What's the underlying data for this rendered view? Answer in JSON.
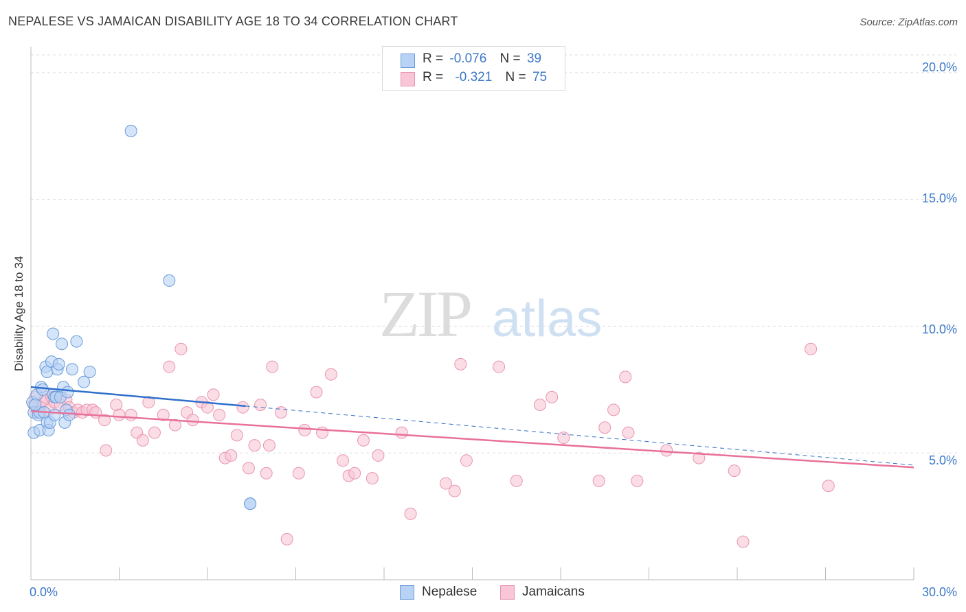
{
  "header": {
    "title": "NEPALESE VS JAMAICAN DISABILITY AGE 18 TO 34 CORRELATION CHART",
    "source": "Source: ZipAtlas.com"
  },
  "watermark": {
    "zip": "ZIP",
    "atlas": "atlas"
  },
  "legend": {
    "rows": [
      {
        "r_label": "R =",
        "r_value": "-0.076",
        "n_label": "N =",
        "n_value": "39"
      },
      {
        "r_label": "R =",
        "r_value": "-0.321",
        "n_label": "N =",
        "n_value": "75"
      }
    ]
  },
  "bottom_legend": {
    "items": [
      "Nepalese",
      "Jamaicans"
    ]
  },
  "colors": {
    "nepalese_fill": "#b7d2f5",
    "nepalese_stroke": "#6a9bd8",
    "nepalese_line": "#2f6fcb",
    "jamaican_fill": "#f8c6d6",
    "jamaican_stroke": "#e894b0",
    "jamaican_line": "#e8709a",
    "tick_text": "#3c78c8",
    "grid": "#dddddd"
  },
  "chart_data": {
    "type": "scatter",
    "title": "NEPALESE VS JAMAICAN DISABILITY AGE 18 TO 34 CORRELATION CHART",
    "xlabel": "",
    "ylabel": "Disability Age 18 to 34",
    "xlim": [
      0,
      30
    ],
    "ylim": [
      0,
      20.7
    ],
    "x_tick_labels": [
      "0.0%",
      "30.0%"
    ],
    "y_ticks": [
      5,
      10,
      15,
      20
    ],
    "y_tick_labels": [
      "5.0%",
      "10.0%",
      "15.0%",
      "20.0%"
    ],
    "grid": true,
    "legend_position": "top-center",
    "series": [
      {
        "name": "Nepalese",
        "r": -0.076,
        "n": 39,
        "trend": {
          "x": [
            0,
            7.3
          ],
          "y": [
            7.6,
            6.85
          ]
        },
        "trend_extension": {
          "x": [
            7.3,
            30
          ],
          "y": [
            6.85,
            4.52
          ]
        },
        "points": [
          [
            0.05,
            7.0
          ],
          [
            0.1,
            6.6
          ],
          [
            0.1,
            5.8
          ],
          [
            0.2,
            7.3
          ],
          [
            0.25,
            6.5
          ],
          [
            0.3,
            5.9
          ],
          [
            0.3,
            6.6
          ],
          [
            0.35,
            7.6
          ],
          [
            0.4,
            7.5
          ],
          [
            0.45,
            6.6
          ],
          [
            0.5,
            8.4
          ],
          [
            0.55,
            8.2
          ],
          [
            0.55,
            6.2
          ],
          [
            0.6,
            5.9
          ],
          [
            0.65,
            6.2
          ],
          [
            0.7,
            8.6
          ],
          [
            0.75,
            7.3
          ],
          [
            0.75,
            9.7
          ],
          [
            0.8,
            7.2
          ],
          [
            0.8,
            6.5
          ],
          [
            0.85,
            7.2
          ],
          [
            0.9,
            8.3
          ],
          [
            0.95,
            8.5
          ],
          [
            1.0,
            7.2
          ],
          [
            1.05,
            9.3
          ],
          [
            1.1,
            7.6
          ],
          [
            1.15,
            6.2
          ],
          [
            1.2,
            6.7
          ],
          [
            1.25,
            7.4
          ],
          [
            1.3,
            6.5
          ],
          [
            1.4,
            8.3
          ],
          [
            1.55,
            9.4
          ],
          [
            1.8,
            7.8
          ],
          [
            2.0,
            8.2
          ],
          [
            3.4,
            17.7
          ],
          [
            4.7,
            11.8
          ],
          [
            7.45,
            3.0
          ],
          [
            7.45,
            3.0
          ],
          [
            0.15,
            6.9
          ]
        ]
      },
      {
        "name": "Jamaicans",
        "r": -0.321,
        "n": 75,
        "trend": {
          "x": [
            0,
            30
          ],
          "y": [
            6.65,
            4.43
          ]
        },
        "points": [
          [
            0.1,
            6.9
          ],
          [
            0.15,
            7.2
          ],
          [
            0.25,
            6.6
          ],
          [
            0.3,
            6.8
          ],
          [
            0.4,
            7.0
          ],
          [
            0.5,
            7.2
          ],
          [
            0.6,
            6.7
          ],
          [
            0.7,
            7.2
          ],
          [
            0.8,
            7.0
          ],
          [
            1.0,
            6.9
          ],
          [
            1.2,
            7.1
          ],
          [
            1.3,
            6.8
          ],
          [
            1.45,
            6.6
          ],
          [
            1.6,
            6.7
          ],
          [
            1.75,
            6.6
          ],
          [
            1.9,
            6.7
          ],
          [
            2.1,
            6.7
          ],
          [
            2.2,
            6.6
          ],
          [
            2.5,
            6.3
          ],
          [
            2.55,
            5.1
          ],
          [
            2.9,
            6.9
          ],
          [
            3.0,
            6.5
          ],
          [
            3.4,
            6.5
          ],
          [
            3.6,
            5.8
          ],
          [
            3.8,
            5.5
          ],
          [
            4.0,
            7.0
          ],
          [
            4.2,
            5.8
          ],
          [
            4.5,
            6.5
          ],
          [
            4.7,
            8.4
          ],
          [
            4.9,
            6.1
          ],
          [
            5.1,
            9.1
          ],
          [
            5.3,
            6.6
          ],
          [
            5.5,
            6.3
          ],
          [
            5.8,
            7.0
          ],
          [
            6.0,
            6.8
          ],
          [
            6.2,
            7.3
          ],
          [
            6.4,
            6.5
          ],
          [
            6.6,
            4.8
          ],
          [
            6.8,
            4.9
          ],
          [
            7.0,
            5.7
          ],
          [
            7.2,
            6.8
          ],
          [
            7.4,
            4.4
          ],
          [
            7.6,
            5.3
          ],
          [
            7.8,
            6.9
          ],
          [
            8.0,
            4.2
          ],
          [
            8.1,
            5.3
          ],
          [
            8.2,
            8.4
          ],
          [
            8.5,
            6.6
          ],
          [
            8.7,
            1.6
          ],
          [
            9.1,
            4.2
          ],
          [
            9.3,
            5.9
          ],
          [
            9.7,
            7.4
          ],
          [
            9.9,
            5.8
          ],
          [
            10.2,
            8.1
          ],
          [
            10.6,
            4.7
          ],
          [
            10.8,
            4.1
          ],
          [
            11.0,
            4.2
          ],
          [
            11.3,
            5.5
          ],
          [
            11.6,
            4.0
          ],
          [
            11.8,
            4.9
          ],
          [
            12.6,
            5.8
          ],
          [
            12.9,
            2.6
          ],
          [
            14.1,
            3.8
          ],
          [
            14.4,
            3.5
          ],
          [
            14.6,
            8.5
          ],
          [
            14.8,
            4.7
          ],
          [
            15.9,
            8.4
          ],
          [
            16.5,
            3.9
          ],
          [
            17.3,
            6.9
          ],
          [
            17.7,
            7.2
          ],
          [
            18.1,
            5.6
          ],
          [
            19.3,
            3.9
          ],
          [
            19.5,
            6.0
          ],
          [
            19.8,
            6.7
          ],
          [
            20.2,
            8.0
          ]
        ],
        "extra_points": [
          [
            20.3,
            5.8
          ],
          [
            20.6,
            3.9
          ],
          [
            21.6,
            5.1
          ],
          [
            22.7,
            4.8
          ],
          [
            23.9,
            4.3
          ],
          [
            24.2,
            1.5
          ],
          [
            26.5,
            9.1
          ],
          [
            27.1,
            3.7
          ]
        ]
      }
    ]
  }
}
